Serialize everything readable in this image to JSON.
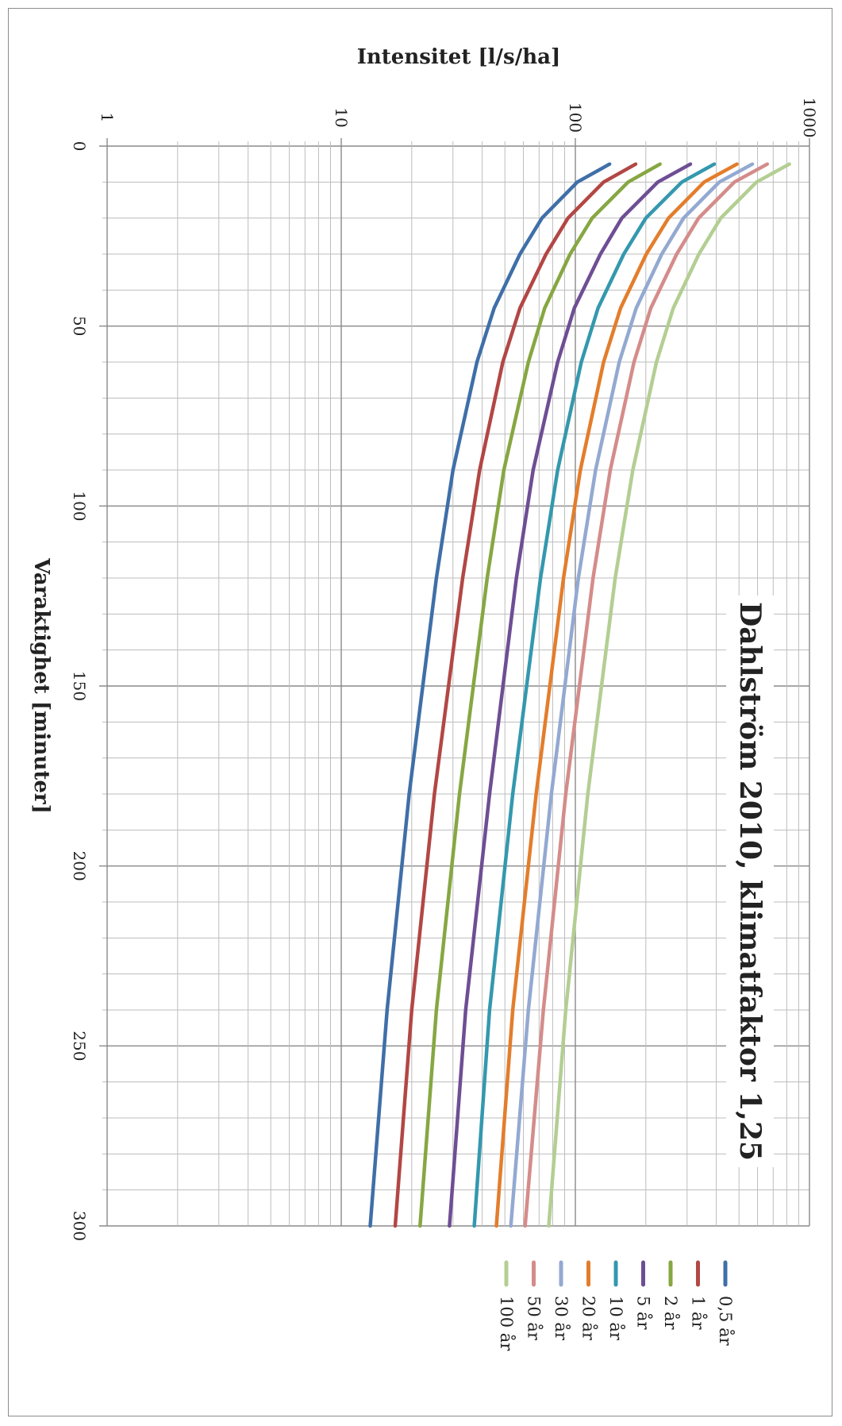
{
  "chart_data": {
    "type": "line",
    "title": "Dahlström 2010, klimatfaktor 1,25",
    "xlabel": "Varaktighet [minuter]",
    "ylabel": "Intensitet [l/s/ha]",
    "x_ticks": [
      "0",
      "50",
      "100",
      "150",
      "200",
      "250",
      "300"
    ],
    "y_ticks": [
      "1",
      "10",
      "100",
      "1000"
    ],
    "xlim": [
      0,
      300
    ],
    "ylim": [
      1,
      1000
    ],
    "y_scale": "log",
    "grid": true,
    "legend_position": "right",
    "x": [
      5,
      10,
      20,
      30,
      45,
      60,
      90,
      120,
      180,
      240,
      300
    ],
    "series": [
      {
        "name": "0,5 år",
        "color": "#3F6FA8",
        "values": [
          140,
          102,
          72,
          58,
          45,
          38,
          30,
          25.5,
          19.5,
          15.7,
          13.3
        ]
      },
      {
        "name": "1 år",
        "color": "#B24744",
        "values": [
          181,
          132,
          93,
          75,
          58,
          49,
          39,
          33,
          25,
          20,
          17
        ]
      },
      {
        "name": "2 år",
        "color": "#86A742",
        "values": [
          230,
          168,
          118,
          95,
          74,
          63,
          49.5,
          42,
          32,
          25.5,
          21.7
        ]
      },
      {
        "name": "5 år",
        "color": "#6E4E94",
        "values": [
          310,
          225,
          158,
          128,
          99,
          84,
          66,
          56,
          43,
          34,
          29
        ]
      },
      {
        "name": "10 år",
        "color": "#3498AE",
        "values": [
          392,
          285,
          200,
          161,
          125,
          106,
          84,
          71,
          54,
          43,
          37
        ]
      },
      {
        "name": "20 år",
        "color": "#E37D2C",
        "values": [
          490,
          355,
          250,
          201,
          156,
          132,
          105,
          89,
          68,
          54,
          46
        ]
      },
      {
        "name": "30 år",
        "color": "#93A9D1",
        "values": [
          570,
          412,
          290,
          234,
          182,
          154,
          122,
          103,
          79,
          63,
          53
        ]
      },
      {
        "name": "50 år",
        "color": "#D48C8A",
        "values": [
          660,
          478,
          336,
          271,
          210,
          178,
          141,
          119,
          91,
          73,
          61
        ]
      },
      {
        "name": "100 år",
        "color": "#B3CE92",
        "values": [
          820,
          594,
          418,
          337,
          262,
          222,
          176,
          148,
          113,
          91,
          77
        ]
      }
    ]
  }
}
